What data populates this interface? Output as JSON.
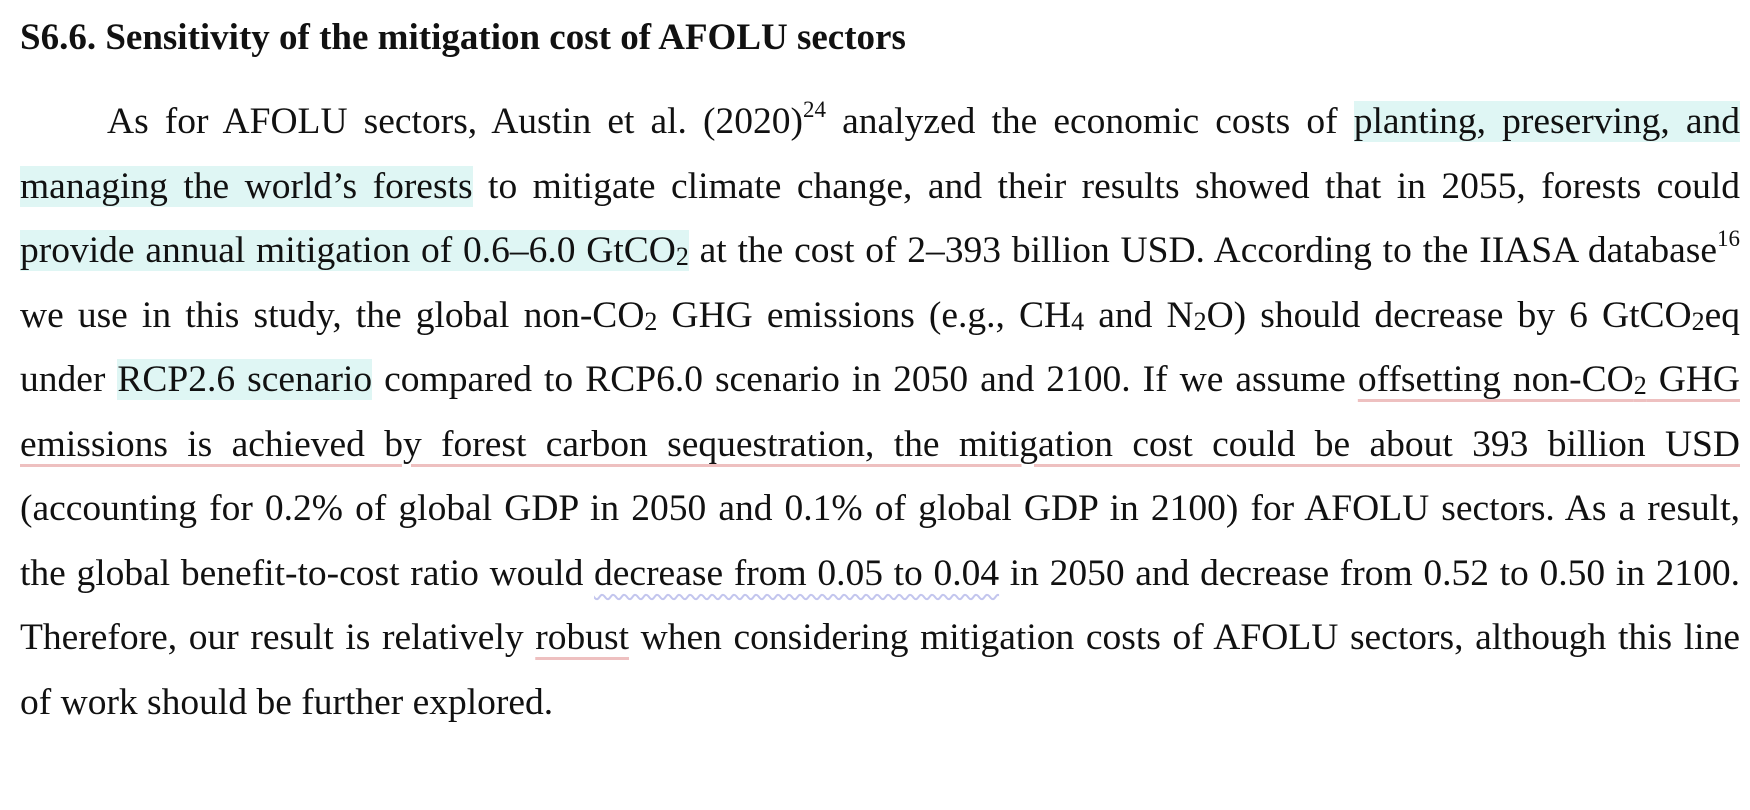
{
  "section": {
    "heading": "S6.6. Sensitivity of the mitigation cost of AFOLU sectors"
  },
  "paragraph": {
    "s01": "As for AFOLU sectors, Austin et al. (2020)",
    "ref_austin": "24",
    "s02": " analyzed the economic costs of ",
    "hl_forests": "planting, preserving, and managing the world’s forests",
    "s03": " to mitigate climate change, and their results showed that in 2055, forests could ",
    "hl_mitigation_a": "provide annual mitigation of 0.6–6.0 GtCO",
    "hl_mitigation_sub": "2",
    "s04": " at the cost of 2–393 billion USD. According to the IIASA database",
    "ref_iiasa": "16",
    "s05": " we use in this study, the global non-CO",
    "sub_co2_a": "2",
    "s06": " GHG emissions (e.g., CH",
    "sub_ch4": "4",
    "s07": " and N",
    "sub_n2o": "2",
    "s08": "O) should decrease by 6 GtCO",
    "sub_co2_b": "2",
    "s09": "eq under ",
    "hl_rcp": "RCP2.6 scenario",
    "s10": " compared to RCP6.0 scenario in 2050 and 2100. If we assume ",
    "ul_offset_a": "offsetting non-CO",
    "ul_offset_sub": "2",
    "ul_offset_b": " GHG emissions is achieved by forest carbon sequestration, the mitigation cost could be about 393 billion USD",
    "s11": " (accounting for 0.2% of global GDP in 2050 and 0.1% of global GDP in 2100) for AFOLU sectors. As a result, the global benefit-to-cost ratio would ",
    "wavy_decrease": "decrease from 0.05 to 0.04",
    "s12": " in 2050 and decrease from 0.52 to 0.50 in 2100. Therefore, our result is relatively ",
    "ul_robust": "robust",
    "s13": " when considering mitigation costs of AFOLU sectors, although this line of work should be further explored."
  },
  "colors": {
    "highlight": "#dff6f4",
    "underline_red": "#eec0c0",
    "underline_wavy": "#c3c6ee",
    "text": "#111111"
  }
}
